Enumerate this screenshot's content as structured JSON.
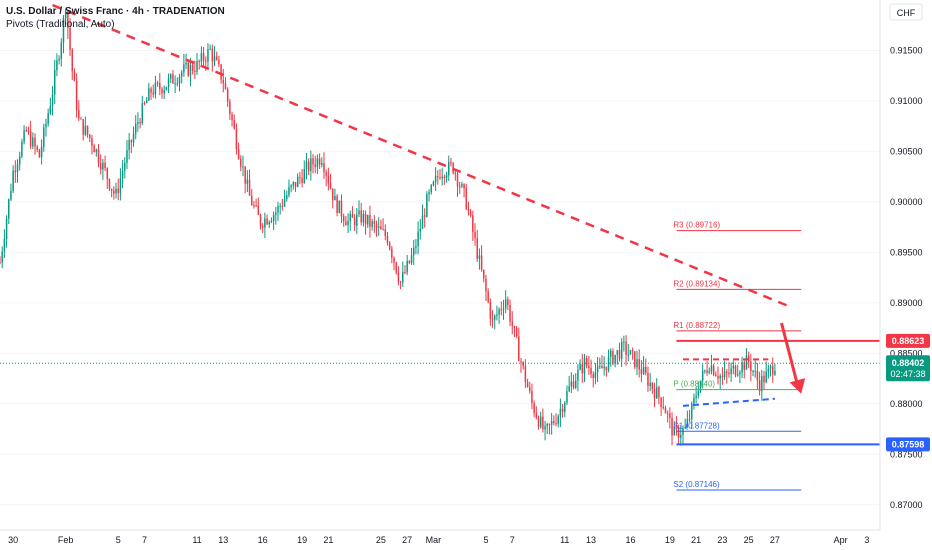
{
  "header": {
    "title": "U.S. Dollar / Swiss Franc · 4h · TRADENATION",
    "indicator": "Pivots (Traditional, Auto)"
  },
  "currency_badge": "CHF",
  "chart_data": {
    "type": "candlestick",
    "price_range": [
      0.8675,
      0.92
    ],
    "y_ticks": [
      0.915,
      0.91,
      0.905,
      0.9,
      0.895,
      0.89,
      0.885,
      0.88,
      0.875,
      0.87
    ],
    "y_tick_labels": [
      "0.91500",
      "0.91000",
      "0.90500",
      "0.90000",
      "0.89500",
      "0.89000",
      "0.88500",
      "0.88000",
      "0.87500",
      "0.87000"
    ],
    "x_labels": [
      {
        "label": "30",
        "day": -3
      },
      {
        "label": "Feb",
        "day": 1
      },
      {
        "label": "5",
        "day": 5
      },
      {
        "label": "7",
        "day": 7
      },
      {
        "label": "11",
        "day": 11
      },
      {
        "label": "13",
        "day": 13
      },
      {
        "label": "16",
        "day": 16
      },
      {
        "label": "19",
        "day": 19
      },
      {
        "label": "21",
        "day": 21
      },
      {
        "label": "25",
        "day": 25
      },
      {
        "label": "27",
        "day": 27
      },
      {
        "label": "Mar",
        "day": 29
      },
      {
        "label": "5",
        "day": 33
      },
      {
        "label": "7",
        "day": 35
      },
      {
        "label": "11",
        "day": 39
      },
      {
        "label": "13",
        "day": 41
      },
      {
        "label": "16",
        "day": 44
      },
      {
        "label": "19",
        "day": 47
      },
      {
        "label": "21",
        "day": 49
      },
      {
        "label": "23",
        "day": 51
      },
      {
        "label": "25",
        "day": 53
      },
      {
        "label": "27",
        "day": 55
      },
      {
        "label": "Apr",
        "day": 60
      },
      {
        "label": "3",
        "day": 62
      }
    ],
    "x_range_days": [
      -4,
      63
    ],
    "price_path": [
      [
        -4,
        0.894
      ],
      [
        -3,
        0.903
      ],
      [
        -2,
        0.907
      ],
      [
        -1,
        0.9045
      ],
      [
        0,
        0.911
      ],
      [
        0.7,
        0.9165
      ],
      [
        1,
        0.9195
      ],
      [
        1.5,
        0.913
      ],
      [
        2,
        0.908
      ],
      [
        3,
        0.906
      ],
      [
        4,
        0.903
      ],
      [
        4.8,
        0.9005
      ],
      [
        5.5,
        0.904
      ],
      [
        6.5,
        0.908
      ],
      [
        7.5,
        0.911
      ],
      [
        8.5,
        0.9115
      ],
      [
        10,
        0.913
      ],
      [
        11,
        0.9135
      ],
      [
        12,
        0.915
      ],
      [
        13,
        0.912
      ],
      [
        14,
        0.906
      ],
      [
        15,
        0.9005
      ],
      [
        15.8,
        0.898
      ],
      [
        17,
        0.899
      ],
      [
        18,
        0.901
      ],
      [
        19.5,
        0.9035
      ],
      [
        20.5,
        0.9045
      ],
      [
        21.5,
        0.9
      ],
      [
        22.5,
        0.898
      ],
      [
        23.5,
        0.8985
      ],
      [
        24.5,
        0.8975
      ],
      [
        25.5,
        0.8965
      ],
      [
        26.5,
        0.892
      ],
      [
        27.5,
        0.895
      ],
      [
        28.5,
        0.9
      ],
      [
        29.5,
        0.903
      ],
      [
        30.5,
        0.9035
      ],
      [
        31.5,
        0.9
      ],
      [
        32.5,
        0.894
      ],
      [
        33.5,
        0.888
      ],
      [
        34.5,
        0.8905
      ],
      [
        35.5,
        0.885
      ],
      [
        36.5,
        0.88
      ],
      [
        37.5,
        0.877
      ],
      [
        38.5,
        0.879
      ],
      [
        39.5,
        0.882
      ],
      [
        40.5,
        0.884
      ],
      [
        41.5,
        0.883
      ],
      [
        42.5,
        0.8845
      ],
      [
        43.5,
        0.8855
      ],
      [
        44.5,
        0.884
      ],
      [
        45.5,
        0.882
      ],
      [
        46.5,
        0.88
      ],
      [
        47.3,
        0.877
      ],
      [
        48.2,
        0.8775
      ],
      [
        48.7,
        0.8795
      ],
      [
        49.2,
        0.882
      ],
      [
        50,
        0.884
      ],
      [
        51,
        0.8825
      ],
      [
        52,
        0.8835
      ],
      [
        53,
        0.8842
      ],
      [
        53.8,
        0.882
      ],
      [
        54.5,
        0.883
      ],
      [
        55,
        0.884
      ]
    ],
    "trendline": {
      "from": [
        0,
        0.9195
      ],
      "to": [
        56,
        0.8897
      ],
      "color": "#f23645",
      "style": "dashed"
    },
    "pivots": [
      {
        "name": "R3",
        "label": "R3 (0.89716)",
        "value": 0.89716,
        "color": "#f23645"
      },
      {
        "name": "R2",
        "label": "R2 (0.89134)",
        "value": 0.89134,
        "color": "#f23645"
      },
      {
        "name": "R1",
        "label": "R1 (0.88722)",
        "value": 0.88722,
        "color": "#f23645"
      },
      {
        "name": "P",
        "label": "P (0.88140)",
        "value": 0.8814,
        "color": "#4caf50"
      },
      {
        "name": "S1",
        "label": "S1 (0.87728)",
        "value": 0.87728,
        "color": "#2962ff"
      },
      {
        "name": "S2",
        "label": "S2 (0.87146)",
        "value": 0.87146,
        "color": "#2962ff"
      }
    ],
    "pivot_days": [
      47.5,
      57
    ],
    "resistance_line": {
      "value": 0.88623,
      "label": "0.88623",
      "color": "#f23645",
      "from_day": 47.5
    },
    "support_line": {
      "value": 0.87598,
      "label": "0.87598",
      "color": "#2962ff",
      "from_day": 47.5
    },
    "range_top": {
      "from": [
        48,
        0.8844
      ],
      "to": [
        54.5,
        0.8844
      ],
      "color": "#f23645",
      "style": "dashed"
    },
    "range_bottom": {
      "from": [
        48,
        0.8798
      ],
      "to": [
        55,
        0.8805
      ],
      "color": "#2962ff",
      "style": "dashed"
    },
    "last_price": {
      "value": 0.88402,
      "label": "0.88402",
      "countdown": "02:47:38",
      "color": "#089981"
    },
    "arrow": {
      "from": [
        55.5,
        0.888
      ],
      "to": [
        57,
        0.881
      ],
      "color": "#f23645"
    }
  }
}
